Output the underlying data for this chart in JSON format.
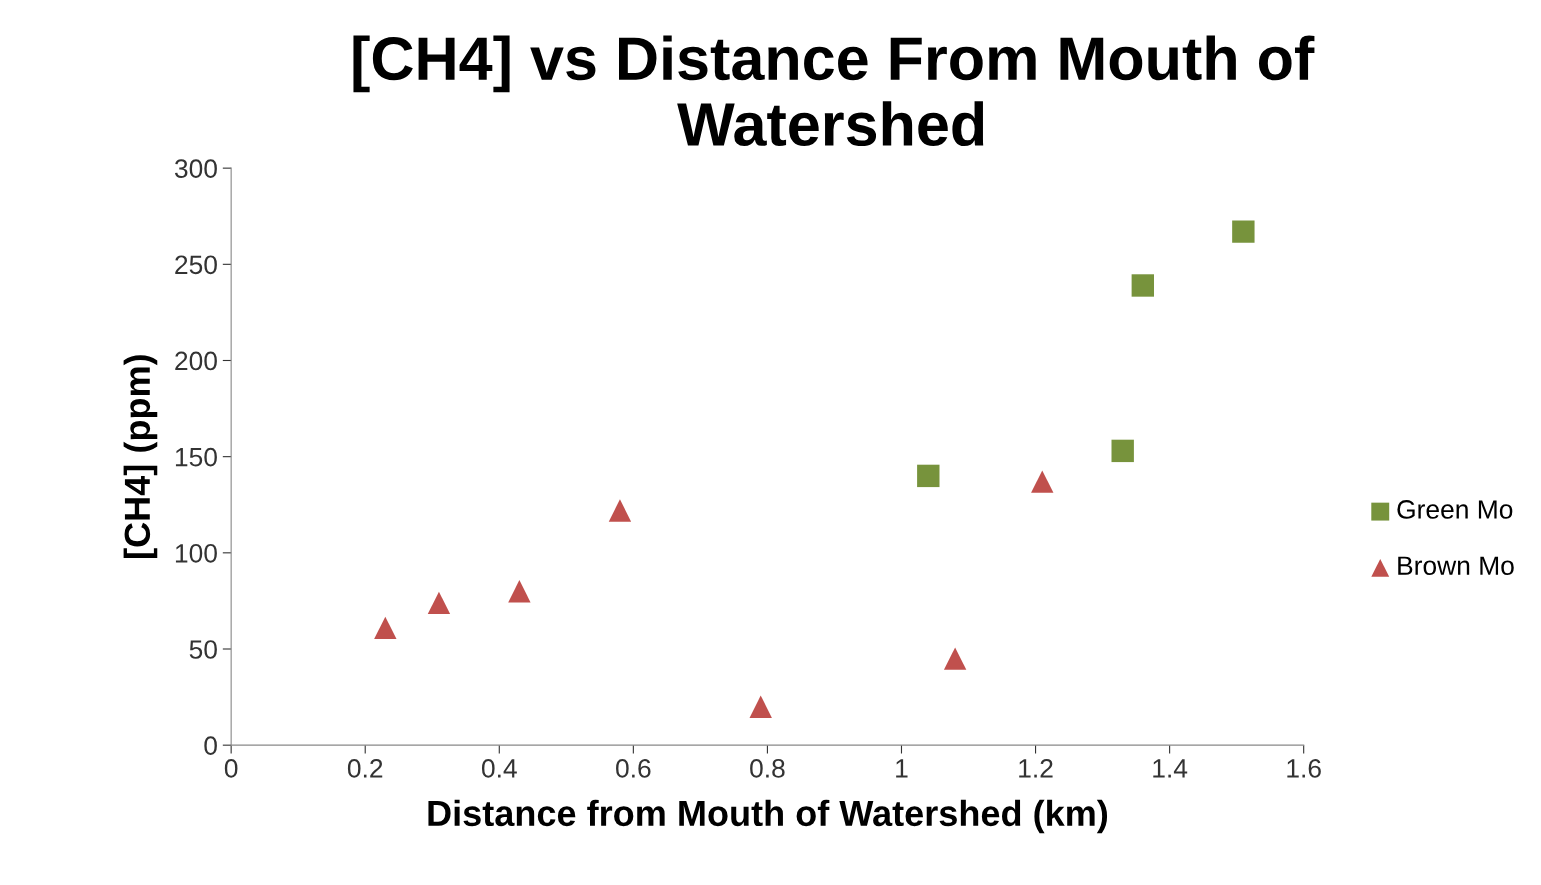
{
  "chart_data": {
    "type": "scatter",
    "title": "[CH4] vs Distance From Mouth of\nWatershed",
    "xlabel": "Distance from Mouth of Watershed (km)",
    "ylabel": "[CH4] (ppm)",
    "xlim": [
      0,
      1.6
    ],
    "xticks": [
      0,
      0.2,
      0.4,
      0.6,
      0.8,
      1,
      1.2,
      1.4,
      1.6
    ],
    "ylim": [
      0,
      300
    ],
    "yticks": [
      0,
      50,
      100,
      150,
      200,
      250,
      300
    ],
    "grid": false,
    "legend": "right",
    "series": [
      {
        "name": "Green Mo",
        "color": "#77933c",
        "marker": "square",
        "x": [
          1.04,
          1.33,
          1.36,
          1.51
        ],
        "values": [
          140,
          153,
          239,
          267
        ]
      },
      {
        "name": "Brown Mo",
        "color": "#c0504d",
        "marker": "triangle",
        "x": [
          0.23,
          0.31,
          0.43,
          0.58,
          0.79,
          1.08,
          1.21
        ],
        "values": [
          61,
          74,
          80,
          122,
          20,
          45,
          137
        ]
      }
    ]
  }
}
